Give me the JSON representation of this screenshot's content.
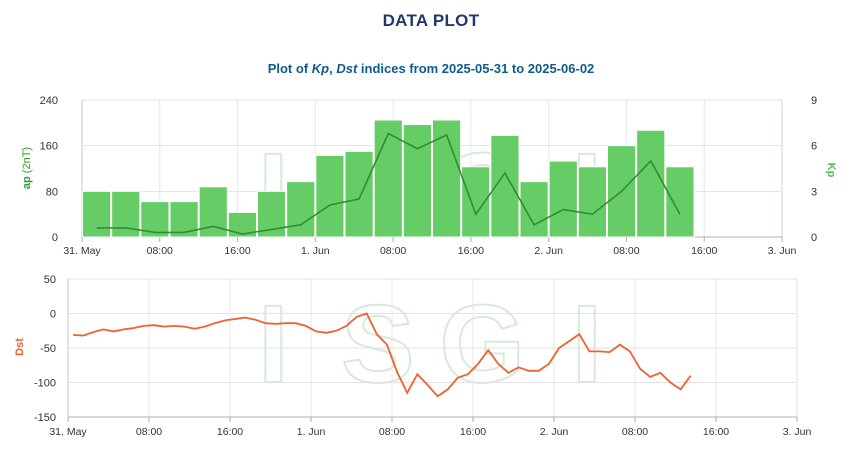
{
  "page": {
    "title": "DATA PLOT",
    "subtitle_prefix": "Plot of ",
    "subtitle_kp": "Kp",
    "subtitle_sep": ", ",
    "subtitle_dst": "Dst",
    "subtitle_suffix": " indices from 2025-05-31 to 2025-06-02",
    "watermark": "ISGI"
  },
  "colors": {
    "bar_fill": "#66cc66",
    "kp_line": "#2f8f2f",
    "dst_line": "#f06030",
    "ap_axis_label": "#2e9e2e",
    "kp_axis_label": "#55bb55",
    "dst_axis_label": "#f06030"
  },
  "x_ticks": [
    "31. May",
    "08:00",
    "16:00",
    "1. Jun",
    "08:00",
    "16:00",
    "2. Jun",
    "08:00",
    "16:00",
    "3. Jun"
  ],
  "chart_data": [
    {
      "type": "bar",
      "name": "ap/Kp panel",
      "x_unit": "hours since 2025-05-31 00:00",
      "bar_width_hours": 3,
      "xlim": [
        0,
        72
      ],
      "left_axis": {
        "label_main": "ap",
        "label_unit": " (2nT)",
        "ylim": [
          0,
          240
        ],
        "ticks": [
          "0",
          "80",
          "160",
          "240"
        ]
      },
      "right_axis": {
        "label": "Kp",
        "ylim": [
          0,
          9
        ],
        "ticks": [
          "0",
          "3",
          "6",
          "9"
        ]
      },
      "bars": [
        {
          "t": 0,
          "ap": 80
        },
        {
          "t": 3,
          "ap": 80
        },
        {
          "t": 6,
          "ap": 62
        },
        {
          "t": 9,
          "ap": 62
        },
        {
          "t": 12,
          "ap": 88
        },
        {
          "t": 15,
          "ap": 43
        },
        {
          "t": 18,
          "ap": 80
        },
        {
          "t": 21,
          "ap": 97
        },
        {
          "t": 24,
          "ap": 143
        },
        {
          "t": 27,
          "ap": 150
        },
        {
          "t": 30,
          "ap": 205
        },
        {
          "t": 33,
          "ap": 197
        },
        {
          "t": 36,
          "ap": 205
        },
        {
          "t": 39,
          "ap": 123
        },
        {
          "t": 42,
          "ap": 178
        },
        {
          "t": 45,
          "ap": 97
        },
        {
          "t": 48,
          "ap": 133
        },
        {
          "t": 51,
          "ap": 123
        },
        {
          "t": 54,
          "ap": 160
        },
        {
          "t": 57,
          "ap": 187
        },
        {
          "t": 60,
          "ap": 123
        }
      ],
      "kp_line": [
        {
          "t": 1.5,
          "kp": 0.6
        },
        {
          "t": 4.5,
          "kp": 0.6
        },
        {
          "t": 7.5,
          "kp": 0.3
        },
        {
          "t": 10.5,
          "kp": 0.3
        },
        {
          "t": 13.5,
          "kp": 0.7
        },
        {
          "t": 16.5,
          "kp": 0.2
        },
        {
          "t": 19.5,
          "kp": 0.5
        },
        {
          "t": 22.5,
          "kp": 0.8
        },
        {
          "t": 25.5,
          "kp": 2.1
        },
        {
          "t": 28.5,
          "kp": 2.5
        },
        {
          "t": 31.5,
          "kp": 6.8
        },
        {
          "t": 34.5,
          "kp": 5.8
        },
        {
          "t": 37.5,
          "kp": 6.7
        },
        {
          "t": 40.5,
          "kp": 1.5
        },
        {
          "t": 43.5,
          "kp": 4.2
        },
        {
          "t": 46.5,
          "kp": 0.8
        },
        {
          "t": 49.5,
          "kp": 1.8
        },
        {
          "t": 52.5,
          "kp": 1.5
        },
        {
          "t": 55.5,
          "kp": 3.0
        },
        {
          "t": 58.5,
          "kp": 5.0
        },
        {
          "t": 61.5,
          "kp": 1.5
        }
      ]
    },
    {
      "type": "line",
      "name": "Dst panel",
      "x_unit": "hours since 2025-05-31 00:00",
      "xlim": [
        0,
        72
      ],
      "ylabel": "Dst",
      "ylim": [
        -150,
        50
      ],
      "y_ticks": [
        "50",
        "0",
        "-50",
        "-100",
        "-150"
      ],
      "points": [
        {
          "t": 0.5,
          "dst": -31
        },
        {
          "t": 1.5,
          "dst": -32
        },
        {
          "t": 2.5,
          "dst": -27
        },
        {
          "t": 3.5,
          "dst": -23
        },
        {
          "t": 4.5,
          "dst": -26
        },
        {
          "t": 5.5,
          "dst": -23
        },
        {
          "t": 6.5,
          "dst": -21
        },
        {
          "t": 7.5,
          "dst": -18
        },
        {
          "t": 8.5,
          "dst": -17
        },
        {
          "t": 9.5,
          "dst": -19
        },
        {
          "t": 10.5,
          "dst": -18
        },
        {
          "t": 11.5,
          "dst": -19
        },
        {
          "t": 12.5,
          "dst": -22
        },
        {
          "t": 13.5,
          "dst": -19
        },
        {
          "t": 14.5,
          "dst": -14
        },
        {
          "t": 15.5,
          "dst": -10
        },
        {
          "t": 16.5,
          "dst": -8
        },
        {
          "t": 17.5,
          "dst": -6
        },
        {
          "t": 18.5,
          "dst": -9
        },
        {
          "t": 19.5,
          "dst": -14
        },
        {
          "t": 20.5,
          "dst": -15
        },
        {
          "t": 21.5,
          "dst": -14
        },
        {
          "t": 22.5,
          "dst": -14
        },
        {
          "t": 23.5,
          "dst": -18
        },
        {
          "t": 24.5,
          "dst": -26
        },
        {
          "t": 25.5,
          "dst": -28
        },
        {
          "t": 26.5,
          "dst": -25
        },
        {
          "t": 27.5,
          "dst": -18
        },
        {
          "t": 28.5,
          "dst": -5
        },
        {
          "t": 29.5,
          "dst": 0
        },
        {
          "t": 30.5,
          "dst": -30
        },
        {
          "t": 31.5,
          "dst": -45
        },
        {
          "t": 32.5,
          "dst": -85
        },
        {
          "t": 33.5,
          "dst": -115
        },
        {
          "t": 34.5,
          "dst": -88
        },
        {
          "t": 35.5,
          "dst": -103
        },
        {
          "t": 36.5,
          "dst": -120
        },
        {
          "t": 37.5,
          "dst": -110
        },
        {
          "t": 38.5,
          "dst": -93
        },
        {
          "t": 39.5,
          "dst": -88
        },
        {
          "t": 40.5,
          "dst": -73
        },
        {
          "t": 41.5,
          "dst": -53
        },
        {
          "t": 42.5,
          "dst": -73
        },
        {
          "t": 43.5,
          "dst": -86
        },
        {
          "t": 44.5,
          "dst": -78
        },
        {
          "t": 45.5,
          "dst": -83
        },
        {
          "t": 46.5,
          "dst": -83
        },
        {
          "t": 47.5,
          "dst": -73
        },
        {
          "t": 48.5,
          "dst": -50
        },
        {
          "t": 49.5,
          "dst": -40
        },
        {
          "t": 50.5,
          "dst": -30
        },
        {
          "t": 51.5,
          "dst": -55
        },
        {
          "t": 52.5,
          "dst": -55
        },
        {
          "t": 53.5,
          "dst": -56
        },
        {
          "t": 54.5,
          "dst": -45
        },
        {
          "t": 55.5,
          "dst": -55
        },
        {
          "t": 56.5,
          "dst": -80
        },
        {
          "t": 57.5,
          "dst": -92
        },
        {
          "t": 58.5,
          "dst": -86
        },
        {
          "t": 59.5,
          "dst": -100
        },
        {
          "t": 60.5,
          "dst": -110
        },
        {
          "t": 61.5,
          "dst": -90
        }
      ]
    }
  ]
}
